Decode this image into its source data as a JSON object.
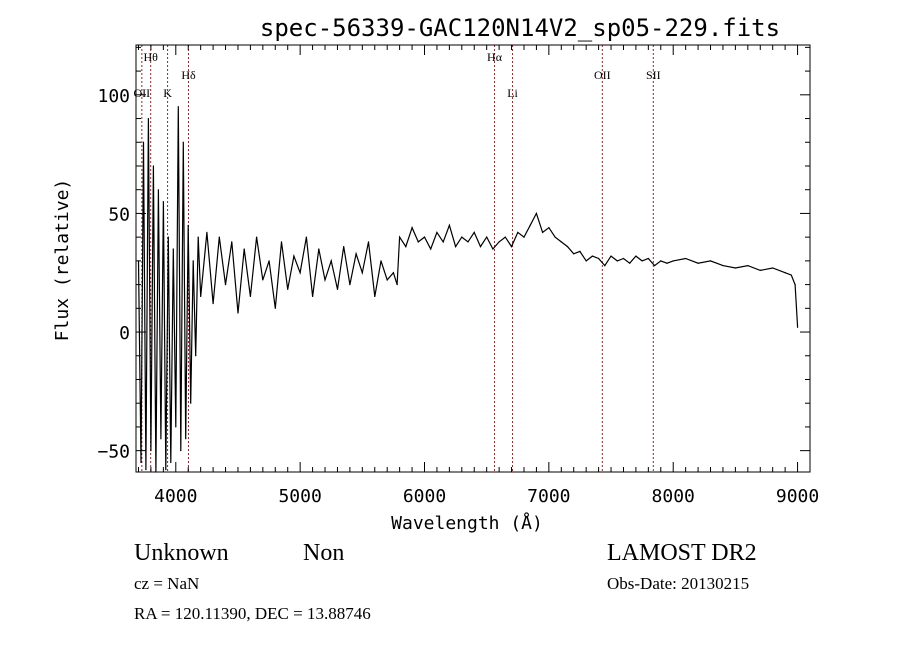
{
  "chart_data": {
    "type": "line",
    "title": "spec-56339-GAC120N14V2_sp05-229.fits",
    "xlabel": "Wavelength (Å)",
    "ylabel": "Flux (relative)",
    "xlim": [
      3680,
      9100
    ],
    "ylim": [
      -59,
      121
    ],
    "xticks": [
      4000,
      5000,
      6000,
      7000,
      8000,
      9000
    ],
    "xtick_labels": [
      "4000",
      "5000",
      "6000",
      "7000",
      "8000",
      "9000"
    ],
    "yticks": [
      -50,
      0,
      50,
      100
    ],
    "ytick_labels": [
      "−50",
      "0",
      "50",
      "100"
    ],
    "grid": false,
    "lines": [
      {
        "label": "Hθ",
        "wavelength": 3798
      },
      {
        "label": "OII",
        "wavelength": 3727
      },
      {
        "label": "K",
        "wavelength": 3934
      },
      {
        "label": "Hδ",
        "wavelength": 4102
      },
      {
        "label": "Hα",
        "wavelength": 6563
      },
      {
        "label": "Li",
        "wavelength": 6708
      },
      {
        "label": "OII",
        "wavelength": 7430
      },
      {
        "label": "SII",
        "wavelength": 7840
      }
    ],
    "series": [
      {
        "name": "flux",
        "x": [
          3700,
          3720,
          3740,
          3760,
          3780,
          3800,
          3820,
          3840,
          3860,
          3880,
          3900,
          3920,
          3940,
          3960,
          3980,
          4000,
          4020,
          4040,
          4060,
          4080,
          4100,
          4120,
          4140,
          4160,
          4180,
          4200,
          4250,
          4300,
          4350,
          4400,
          4450,
          4500,
          4550,
          4600,
          4650,
          4700,
          4750,
          4800,
          4850,
          4900,
          4950,
          5000,
          5050,
          5100,
          5150,
          5200,
          5250,
          5300,
          5350,
          5400,
          5450,
          5500,
          5550,
          5600,
          5650,
          5700,
          5750,
          5780,
          5800,
          5850,
          5900,
          5950,
          6000,
          6050,
          6100,
          6150,
          6200,
          6250,
          6300,
          6350,
          6400,
          6450,
          6500,
          6550,
          6600,
          6650,
          6700,
          6750,
          6800,
          6850,
          6900,
          6950,
          7000,
          7050,
          7100,
          7150,
          7200,
          7250,
          7300,
          7350,
          7400,
          7450,
          7500,
          7550,
          7600,
          7650,
          7700,
          7750,
          7800,
          7850,
          7900,
          7950,
          8000,
          8100,
          8200,
          8300,
          8400,
          8500,
          8600,
          8700,
          8800,
          8900,
          8950,
          8980,
          9000
        ],
        "y": [
          30,
          -55,
          80,
          -58,
          90,
          -50,
          70,
          -60,
          60,
          -45,
          55,
          -58,
          40,
          -55,
          35,
          -40,
          95,
          -50,
          80,
          -45,
          45,
          -30,
          30,
          -10,
          40,
          15,
          42,
          12,
          40,
          20,
          38,
          8,
          35,
          15,
          40,
          22,
          30,
          10,
          38,
          18,
          32,
          25,
          40,
          15,
          35,
          22,
          30,
          18,
          36,
          20,
          33,
          25,
          38,
          15,
          30,
          22,
          25,
          20,
          40,
          36,
          44,
          38,
          40,
          35,
          42,
          38,
          45,
          36,
          40,
          38,
          42,
          36,
          40,
          35,
          38,
          40,
          36,
          42,
          40,
          45,
          50,
          42,
          44,
          40,
          38,
          36,
          33,
          34,
          30,
          32,
          31,
          28,
          32,
          30,
          31,
          29,
          32,
          30,
          31,
          28,
          30,
          29,
          30,
          31,
          29,
          30,
          28,
          27,
          28,
          26,
          27,
          25,
          24,
          20,
          2
        ]
      }
    ]
  },
  "footer": {
    "object_class": "Unknown",
    "subclass": "Non",
    "survey": "LAMOST DR2",
    "cz": "cz = NaN",
    "obs_date": "Obs-Date: 20130215",
    "coords": "RA = 120.11390, DEC =  13.88746"
  }
}
